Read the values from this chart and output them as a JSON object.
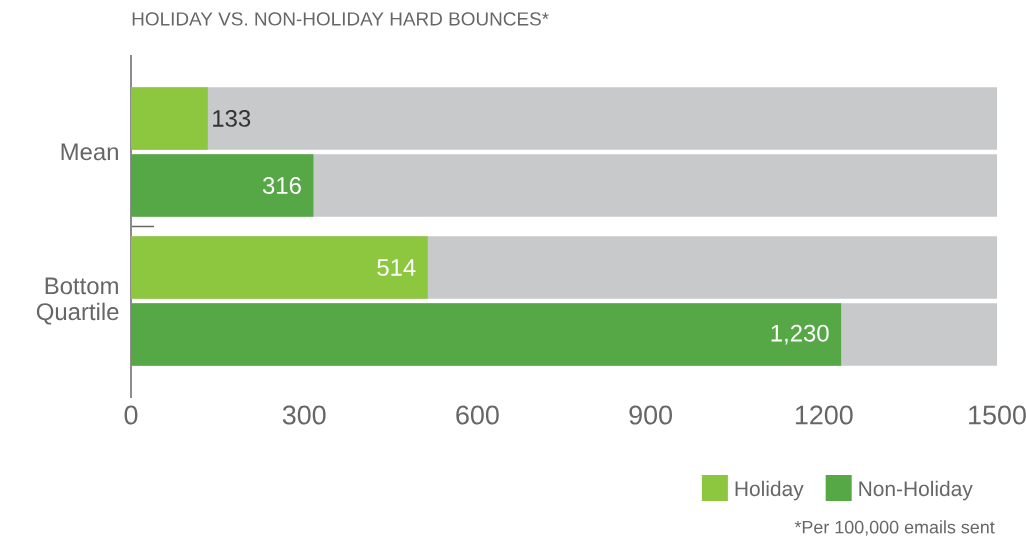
{
  "chart_data": {
    "type": "bar",
    "orientation": "horizontal",
    "title": "HOLIDAY VS. NON-HOLIDAY HARD BOUNCES*",
    "categories": [
      "Mean",
      "Bottom Quartile"
    ],
    "series": [
      {
        "name": "Holiday",
        "color": "#8dc63f",
        "values": [
          133,
          514
        ],
        "value_labels": [
          "133",
          "514"
        ]
      },
      {
        "name": "Non-Holiday",
        "color": "#56a745",
        "values": [
          316,
          1230
        ],
        "value_labels": [
          "316",
          "1,230"
        ]
      }
    ],
    "xlim": [
      0,
      1500
    ],
    "xticks": [
      0,
      300,
      600,
      900,
      1200,
      1500
    ],
    "grid": false,
    "legend": "bottom right",
    "annotations": [
      "*Per 100,000 emails sent"
    ]
  }
}
